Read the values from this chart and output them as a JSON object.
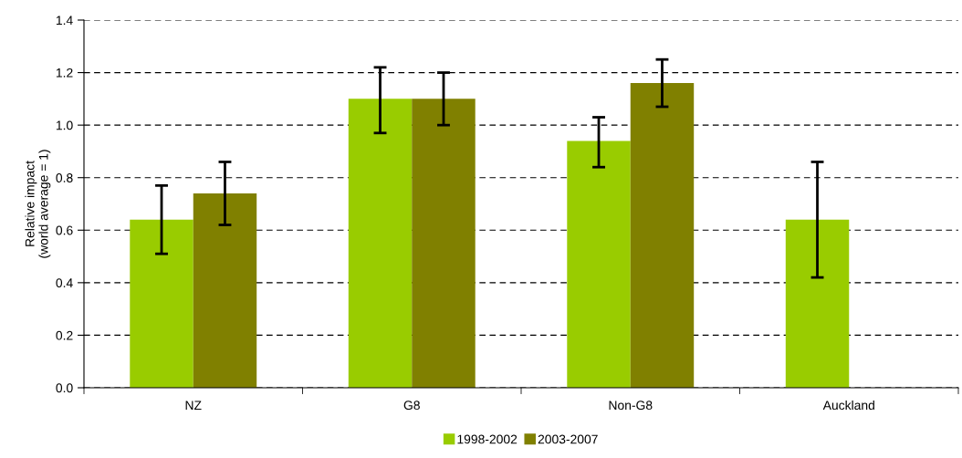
{
  "chart_data": {
    "type": "bar",
    "ylabel": "Relative impact\n(world average = 1)",
    "categories": [
      "NZ",
      "G8",
      "Non-G8",
      "Auckland"
    ],
    "series": [
      {
        "name": "1998-2002",
        "color": "#99cc00",
        "values": [
          0.64,
          1.1,
          0.94,
          0.64
        ],
        "errors": [
          [
            0.51,
            0.77
          ],
          [
            0.97,
            1.22
          ],
          [
            0.84,
            1.03
          ],
          [
            0.42,
            0.86
          ]
        ]
      },
      {
        "name": "2003-2007",
        "color": "#808000",
        "values": [
          0.74,
          1.1,
          1.16,
          null
        ],
        "errors": [
          [
            0.62,
            0.86
          ],
          [
            1.0,
            1.2
          ],
          [
            1.07,
            1.25
          ],
          null
        ]
      }
    ],
    "ylim": [
      0,
      1.4
    ],
    "yticks": [
      {
        "value": 0,
        "label": "0.0"
      },
      0.2,
      0.4,
      0.6,
      0.8,
      {
        "value": 1.0,
        "label": "1.0"
      },
      1.2,
      1.4
    ],
    "grid": "y",
    "legend": "bottom"
  }
}
